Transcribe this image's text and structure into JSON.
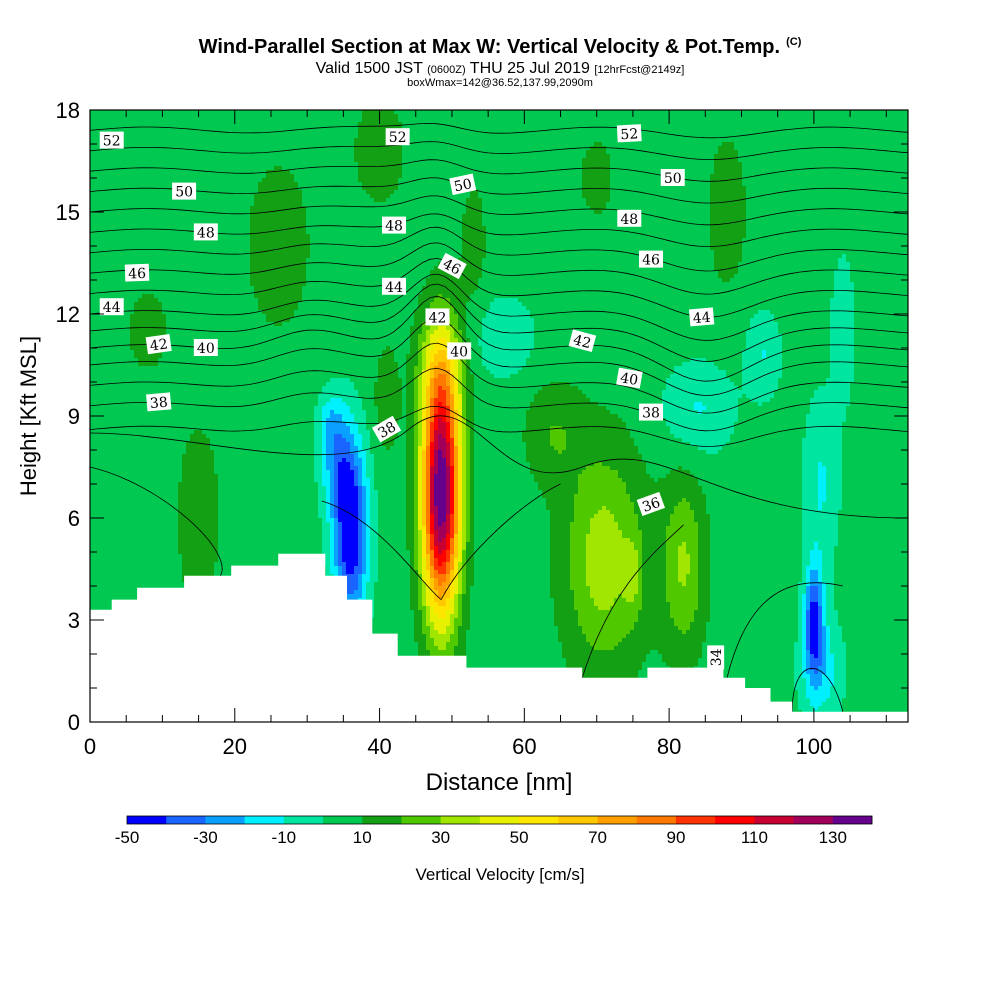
{
  "title": {
    "main": "Wind-Parallel Section at Max W: Vertical Velocity & Pot.Temp.",
    "copyright": "(C)",
    "valid_prefix": "Valid 1500 JST",
    "valid_utc": "(0600Z)",
    "valid_date": "THU 25 Jul 2019",
    "forecast": "[12hrFcst@2149z]",
    "box_info": "boxWmax=142@36.52,137.99,2090m"
  },
  "chart_data": {
    "type": "heatmap",
    "xlabel": "Distance [nm]",
    "ylabel": "Height [Kft MSL]",
    "xlim": [
      0,
      113
    ],
    "ylim": [
      0,
      18
    ],
    "x_ticks": [
      0,
      20,
      40,
      60,
      80,
      100
    ],
    "y_ticks": [
      0,
      3,
      6,
      9,
      12,
      15,
      18
    ],
    "colorbar": {
      "label": "Vertical Velocity [cm/s]",
      "tick_labels": [
        -50,
        -30,
        -10,
        10,
        30,
        50,
        70,
        90,
        110,
        130
      ],
      "bins": [
        -50,
        -40,
        -30,
        -20,
        -10,
        0,
        10,
        20,
        30,
        40,
        50,
        60,
        70,
        80,
        90,
        100,
        110,
        120,
        130,
        140
      ],
      "colors": [
        "#0000ff",
        "#1a64ff",
        "#0aa0ff",
        "#00f0ff",
        "#00e6a0",
        "#00c850",
        "#14a014",
        "#50c800",
        "#a0e600",
        "#e6f000",
        "#ffe600",
        "#ffc800",
        "#ffa000",
        "#ff7800",
        "#ff3200",
        "#ff0000",
        "#c80032",
        "#a0005a",
        "#64008c"
      ],
      "background_value": 5
    },
    "terrain_height_kft": [
      [
        0,
        3.3
      ],
      [
        3,
        3.6
      ],
      [
        6.5,
        3.95
      ],
      [
        13,
        4.3
      ],
      [
        19.5,
        4.6
      ],
      [
        26,
        4.95
      ],
      [
        32.5,
        4.3
      ],
      [
        35.5,
        3.6
      ],
      [
        39,
        2.6
      ],
      [
        42.5,
        1.95
      ],
      [
        52,
        1.6
      ],
      [
        68,
        1.3
      ],
      [
        77,
        1.6
      ],
      [
        82,
        1.6
      ],
      [
        87.5,
        1.3
      ],
      [
        90.5,
        1.0
      ],
      [
        94,
        0.6
      ],
      [
        97,
        0.3
      ],
      [
        113,
        0.3
      ]
    ],
    "updraft_maximum": {
      "x_nm": 48.5,
      "height_kft": 6.5,
      "value_cms": 142
    },
    "potential_temperature_contour_labels": [
      "52",
      "52",
      "52",
      "50",
      "50",
      "50",
      "48",
      "48",
      "48",
      "46",
      "46",
      "46",
      "44",
      "44",
      "44",
      "42",
      "42",
      "42",
      "40",
      "40",
      "40",
      "38",
      "38",
      "38",
      "36",
      "34"
    ]
  }
}
